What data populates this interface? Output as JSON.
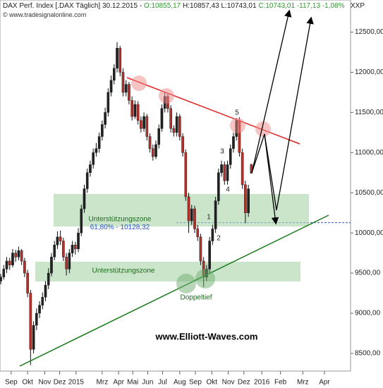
{
  "header": {
    "title": "DAX Perf. Index [.DAX Täglich] 30.12.2015",
    "open": "O:10855,17",
    "high": "H:10857,43",
    "low": "L:10743,01",
    "close": "C:10743,01",
    "change": "-117,13",
    "change_pct": "-1,08%",
    "source": "© www.tradesignalonline.com",
    "code": "XXP"
  },
  "chart_data": {
    "type": "candlestick",
    "x": [
      -14,
      -10,
      -6,
      -2,
      2,
      6,
      10,
      14,
      18,
      22,
      26,
      30,
      34,
      38,
      42,
      46,
      50,
      54,
      58,
      62,
      66,
      70,
      74,
      78,
      82,
      86,
      90,
      94,
      98,
      102,
      106,
      110,
      114,
      118,
      122,
      126,
      130,
      134,
      138,
      142,
      146,
      150,
      154,
      158,
      162,
      166,
      170,
      174,
      178,
      182,
      186,
      190,
      194,
      198,
      202,
      206,
      210,
      214,
      218,
      222,
      226,
      230,
      234,
      238,
      242,
      246,
      250,
      254,
      258,
      262,
      266,
      270,
      274,
      278,
      282,
      286,
      290,
      294,
      298,
      302,
      306,
      310,
      314,
      318,
      322
    ],
    "open": [
      9400,
      9450,
      9550,
      9650,
      9600,
      9750,
      9700,
      9780,
      9650,
      9500,
      9250,
      8550,
      8850,
      9000,
      9100,
      9200,
      9350,
      9500,
      9700,
      9850,
      9950,
      9900,
      9700,
      9550,
      9750,
      9850,
      9800,
      10000,
      10300,
      10550,
      10750,
      10850,
      11000,
      11050,
      11200,
      11350,
      11500,
      11750,
      11900,
      12050,
      12300,
      12000,
      11750,
      11850,
      11650,
      11450,
      11600,
      11400,
      11300,
      11450,
      11200,
      11050,
      10950,
      11100,
      11300,
      11550,
      11700,
      11550,
      11300,
      11250,
      11450,
      11200,
      11000,
      10450,
      10150,
      10300,
      10050,
      9950,
      9650,
      9450,
      9550,
      9900,
      10050,
      10400,
      10750,
      10850,
      10650,
      10850,
      11050,
      11200,
      11400,
      11000,
      10600,
      10250,
      10855.17
    ],
    "high": [
      9490,
      9600,
      9700,
      9690,
      9800,
      9790,
      9830,
      9800,
      9690,
      9540,
      9290,
      8900,
      9060,
      9150,
      9260,
      9400,
      9560,
      9750,
      9900,
      10020,
      10030,
      9940,
      9750,
      9800,
      9900,
      9890,
      10060,
      10350,
      10600,
      10800,
      10900,
      11050,
      11120,
      11250,
      11400,
      11560,
      11800,
      11960,
      12100,
      12375,
      12330,
      12050,
      11900,
      11880,
      11700,
      11650,
      11640,
      11450,
      11500,
      11480,
      11240,
      11100,
      11150,
      11350,
      11600,
      11750,
      11740,
      11590,
      11340,
      11500,
      11480,
      11240,
      11040,
      10500,
      10350,
      10340,
      10100,
      9990,
      9700,
      9600,
      9950,
      10100,
      10450,
      10800,
      10900,
      10890,
      10900,
      11100,
      11250,
      11430,
      11440,
      11050,
      10650,
      10600,
      10857.43
    ],
    "low": [
      9360,
      9420,
      9500,
      9540,
      9570,
      9640,
      9660,
      9600,
      9450,
      9200,
      8355,
      8500,
      8790,
      8940,
      9050,
      9150,
      9300,
      9460,
      9660,
      9800,
      9850,
      9650,
      9470,
      9500,
      9700,
      9730,
      9760,
      9960,
      10250,
      10500,
      10700,
      10800,
      10950,
      11000,
      11150,
      11300,
      11450,
      11700,
      11850,
      12000,
      11950,
      11700,
      11700,
      11600,
      11400,
      11420,
      11350,
      11250,
      11260,
      11150,
      11000,
      10900,
      10920,
      11050,
      11260,
      11500,
      11500,
      11250,
      11200,
      11200,
      11150,
      10950,
      10400,
      10000,
      10100,
      10000,
      9900,
      9600,
      9325,
      9400,
      9500,
      9850,
      10000,
      10350,
      10700,
      10600,
      10600,
      10800,
      11000,
      11150,
      10950,
      10550,
      10120,
      10200,
      10743.01
    ],
    "close": [
      9450,
      9550,
      9650,
      9600,
      9750,
      9700,
      9780,
      9650,
      9500,
      9250,
      8550,
      8850,
      9000,
      9100,
      9200,
      9350,
      9500,
      9700,
      9850,
      9950,
      9900,
      9700,
      9550,
      9750,
      9850,
      9800,
      10000,
      10300,
      10550,
      10750,
      10850,
      11000,
      11050,
      11200,
      11350,
      11500,
      11750,
      11900,
      12050,
      12300,
      12000,
      11750,
      11850,
      11650,
      11450,
      11600,
      11400,
      11300,
      11450,
      11200,
      11050,
      10950,
      11100,
      11300,
      11550,
      11700,
      11550,
      11300,
      11250,
      11450,
      11200,
      11000,
      10450,
      10150,
      10300,
      10050,
      9950,
      9650,
      9450,
      9550,
      9900,
      10050,
      10400,
      10750,
      10850,
      10650,
      10850,
      11050,
      11200,
      11400,
      11000,
      10600,
      10250,
      10550,
      10743.01
    ],
    "up_color": "#222222",
    "down_color": "#b5302a",
    "xlim": [
      -15,
      455
    ],
    "xticks": [
      {
        "value": 0,
        "label": "Sep"
      },
      {
        "value": 22,
        "label": "Okt"
      },
      {
        "value": 45,
        "label": "Nov"
      },
      {
        "value": 65,
        "label": "Dez"
      },
      {
        "value": 87,
        "label": "2015"
      },
      {
        "value": 122,
        "label": "Mrz"
      },
      {
        "value": 144,
        "label": "Apr"
      },
      {
        "value": 163,
        "label": "Mai"
      },
      {
        "value": 183,
        "label": "Jun"
      },
      {
        "value": 203,
        "label": "Jul"
      },
      {
        "value": 226,
        "label": "Aug"
      },
      {
        "value": 247,
        "label": "Sep"
      },
      {
        "value": 269,
        "label": "Okt"
      },
      {
        "value": 291,
        "label": "Nov"
      },
      {
        "value": 312,
        "label": "Dez"
      },
      {
        "value": 336,
        "label": "2016"
      },
      {
        "value": 361,
        "label": "Feb"
      },
      {
        "value": 391,
        "label": "Mrz"
      },
      {
        "value": 420,
        "label": "Apr"
      }
    ],
    "ylim": [
      8280,
      12900
    ],
    "yticks": [
      {
        "value": 8500,
        "label": "8500,00"
      },
      {
        "value": 9000,
        "label": "9000,00"
      },
      {
        "value": 9500,
        "label": "9500,00"
      },
      {
        "value": 10000,
        "label": "10000,00"
      },
      {
        "value": 10500,
        "label": "10500,00"
      },
      {
        "value": 11000,
        "label": "11000,00"
      },
      {
        "value": 11500,
        "label": "11500,00"
      },
      {
        "value": 12000,
        "label": "12000,00"
      },
      {
        "value": 12500,
        "label": "12500,00"
      }
    ],
    "fib_level": {
      "value": 10128.32,
      "label": "61,80% - 10128,32",
      "color": "#3355cc"
    },
    "annotations": {
      "zone_upper": "Unterstützungszone",
      "zone_lower": "Unterstützungszone",
      "double_bottom": "Doppeltief",
      "wave_1": "1",
      "wave_2": "2",
      "wave_3": "3",
      "wave_4": "4",
      "wave_5": "5",
      "watermark": "www.Elliott-Waves.com"
    }
  }
}
